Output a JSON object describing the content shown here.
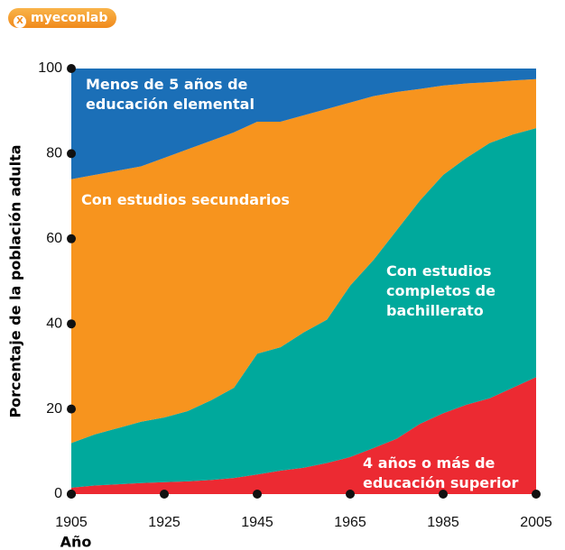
{
  "logo": "myeconlab",
  "chart_data": {
    "type": "stacked_area",
    "xlabel": "Año",
    "ylabel": "Porcentaje de la población adulta",
    "x": [
      1905,
      1910,
      1915,
      1920,
      1925,
      1930,
      1935,
      1940,
      1945,
      1950,
      1955,
      1960,
      1965,
      1970,
      1975,
      1980,
      1985,
      1990,
      1995,
      2000,
      2005
    ],
    "series": [
      {
        "name": "4 años o más de educación superior",
        "color": "#ec2a32",
        "values": [
          1.5,
          2,
          2.3,
          2.6,
          2.8,
          3,
          3.3,
          3.8,
          4.6,
          5.5,
          6.2,
          7.3,
          8.7,
          10.8,
          13,
          16.5,
          19,
          21,
          22.5,
          25,
          27.5
        ]
      },
      {
        "name": "Con estudios completos de bachillerato",
        "color": "#00a99c",
        "values": [
          10.5,
          12,
          13.2,
          14.4,
          15.2,
          16.5,
          18.7,
          21.2,
          28.4,
          29,
          31.8,
          33.7,
          40.3,
          44.2,
          49,
          52.5,
          56,
          58,
          60,
          59.5,
          58.5
        ]
      },
      {
        "name": "Con estudios secundarios",
        "color": "#f7941e",
        "values": [
          62,
          61,
          60.5,
          60,
          61,
          61.5,
          61,
          60,
          54.5,
          53,
          51,
          49.5,
          43,
          38.5,
          32.5,
          26.2,
          21,
          17.5,
          14.3,
          12.7,
          11.5
        ]
      },
      {
        "name": "Menos de 5 años de educación elemental",
        "color": "#1b6fb7",
        "values": [
          26,
          25,
          24,
          23,
          21,
          19,
          17,
          15,
          12.5,
          12.5,
          11,
          9.5,
          8,
          6.5,
          5.5,
          4.8,
          4,
          3.5,
          3.2,
          2.8,
          2.5
        ]
      }
    ],
    "xlim": [
      1905,
      2005
    ],
    "xticks": [
      1905,
      1925,
      1945,
      1965,
      1985,
      2005
    ],
    "ylim": [
      0,
      100
    ],
    "yticks": [
      0,
      20,
      40,
      60,
      80,
      100
    ]
  }
}
